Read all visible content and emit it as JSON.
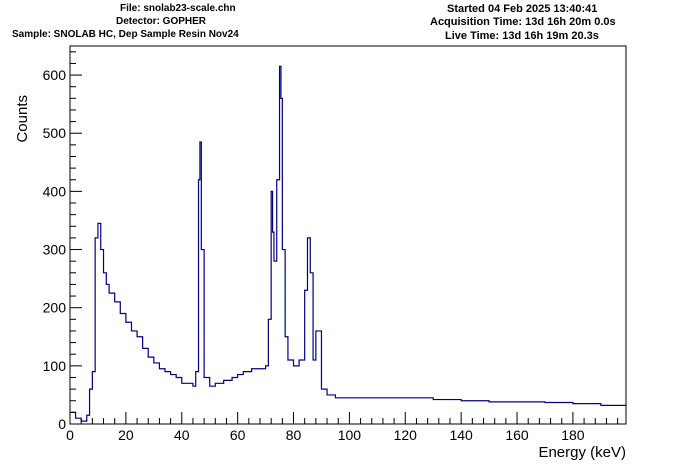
{
  "header": {
    "file": "File: snolab23-scale.chn",
    "detector": "Detector: GOPHER",
    "sample": "Sample: SNOLAB HC, Dep Sample Resin Nov24",
    "started": "Started 04 Feb 2025 13:40:41",
    "acquisition_time": "Acquisition Time: 13d 16h 20m 0.0s",
    "live_time": "Live Time: 13d 16h 19m 20.3s"
  },
  "chart_data": {
    "type": "line",
    "style": "histogram-step",
    "line_color": "#00007f",
    "xlabel": "Energy (keV)",
    "ylabel": "Counts",
    "xlim": [
      0,
      199
    ],
    "ylim": [
      0,
      650
    ],
    "xticks": [
      0,
      20,
      40,
      60,
      80,
      100,
      120,
      140,
      160,
      180
    ],
    "yticks": [
      0,
      100,
      200,
      300,
      400,
      500,
      600
    ],
    "grid": false,
    "legend": "none",
    "series": [
      {
        "x": [
          0,
          2,
          4,
          6,
          7,
          8,
          9,
          10,
          11,
          12,
          13,
          14,
          16,
          18,
          20,
          22,
          24,
          26,
          28,
          30,
          32,
          34,
          36,
          38,
          40,
          42,
          44,
          45,
          46,
          46.5,
          47,
          48,
          50,
          52,
          55,
          58,
          60,
          62,
          65,
          68,
          70,
          71,
          72,
          72.5,
          73,
          74,
          75,
          75.5,
          76,
          77,
          78,
          80,
          82,
          84,
          85,
          86,
          87,
          88,
          90,
          92,
          95,
          100,
          110,
          120,
          130,
          140,
          150,
          160,
          170,
          180,
          190,
          199
        ],
        "y": [
          20,
          10,
          5,
          15,
          60,
          90,
          320,
          345,
          300,
          260,
          240,
          225,
          210,
          190,
          175,
          160,
          150,
          130,
          115,
          105,
          95,
          90,
          85,
          80,
          70,
          70,
          65,
          90,
          420,
          485,
          300,
          80,
          65,
          70,
          75,
          80,
          85,
          90,
          95,
          95,
          100,
          180,
          400,
          330,
          280,
          420,
          615,
          560,
          300,
          150,
          110,
          100,
          110,
          230,
          320,
          260,
          110,
          160,
          60,
          50,
          45,
          45,
          45,
          45,
          42,
          40,
          38,
          38,
          37,
          35,
          32,
          30
        ]
      }
    ]
  }
}
